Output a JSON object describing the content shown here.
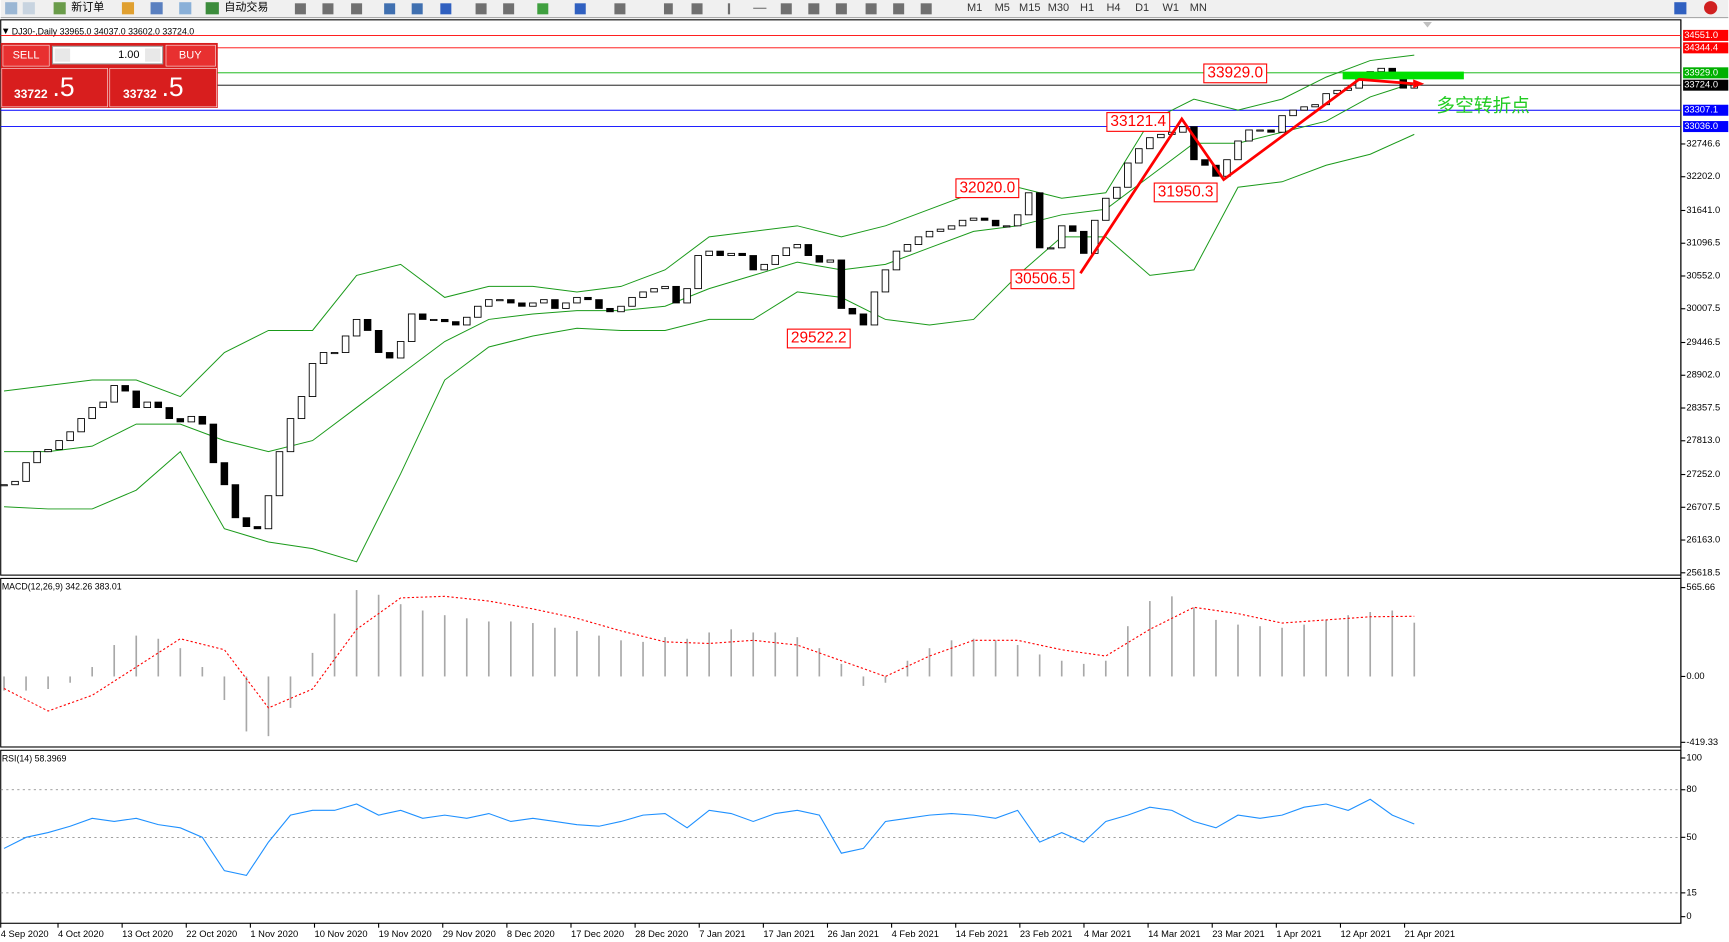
{
  "toolbar": {
    "new_order": "新订单",
    "auto_trading": "自动交易",
    "timeframes": [
      "M1",
      "M5",
      "M15",
      "M30",
      "H1",
      "H4",
      "D1",
      "W1",
      "MN"
    ]
  },
  "order_panel": {
    "sell": "SELL",
    "buy": "BUY",
    "lots": "1.00",
    "sell_price": "33722",
    "sell_fraction": ".5",
    "buy_price": "33732",
    "buy_fraction": ".5"
  },
  "note": "多空转折点",
  "chart_data": [
    {
      "type": "candlestick",
      "title": "DJ30-,Daily  33965.0 34037.0 33602.0 33724.0",
      "values": [
        27083,
        27138,
        27449,
        27632,
        27669,
        27816,
        27962,
        28182,
        28365,
        28456,
        28731,
        28640,
        28365,
        28456,
        28365,
        28182,
        28127,
        28218,
        28090,
        27449,
        27083,
        26534,
        26387,
        26351,
        26900,
        27632,
        28182,
        28548,
        29097,
        29280,
        29280,
        29555,
        29830,
        29647,
        29280,
        29189,
        29463,
        29921,
        29830,
        29830,
        29793,
        29738,
        29866,
        30049,
        30159,
        30159,
        30104,
        30049,
        30104,
        30159,
        30013,
        30104,
        30196,
        30159,
        30013,
        29958,
        30049,
        30196,
        30287,
        30342,
        30379,
        30104,
        30342,
        30892,
        30965,
        30892,
        30928,
        30892,
        30654,
        30745,
        30892,
        31020,
        31075,
        30892,
        30782,
        30818,
        30013,
        29921,
        29738,
        30287,
        30654,
        30965,
        31075,
        31203,
        31294,
        31331,
        31386,
        31478,
        31514,
        31478,
        31386,
        31386,
        31569,
        31935,
        31020,
        31020,
        31386,
        31294,
        30928,
        31478,
        31844,
        32027,
        32430,
        32668,
        32851,
        32906,
        32942,
        33034,
        32485,
        32393,
        32210,
        32485,
        32796,
        32979,
        32979,
        32942,
        33217,
        33309,
        33364,
        33400,
        33583,
        33638,
        33675,
        33858,
        33949,
        34004,
        33894,
        33675,
        33724
      ],
      "upper_band": [
        28640,
        28731,
        28823,
        28823,
        28548,
        29280,
        29647,
        29647,
        30562,
        30745,
        30196,
        30379,
        30379,
        30287,
        30379,
        30654,
        31203,
        31294,
        31386,
        31203,
        31386,
        31661,
        31935,
        32027,
        31844,
        31935,
        33125,
        33492,
        33309,
        33492,
        33858,
        34133,
        34224
      ],
      "middle_band": [
        27632,
        27632,
        27724,
        28090,
        28090,
        27816,
        27632,
        27816,
        28365,
        28914,
        29463,
        29830,
        29921,
        29976,
        29976,
        30049,
        30342,
        30562,
        30782,
        30654,
        30745,
        31020,
        31294,
        31386,
        31569,
        31661,
        32210,
        32759,
        32759,
        32942,
        33125,
        33528,
        33766
      ],
      "lower_band": [
        26717,
        26680,
        26680,
        26992,
        27632,
        26351,
        26131,
        26020,
        25801,
        27266,
        28823,
        29372,
        29555,
        29683,
        29647,
        29647,
        29830,
        29830,
        30287,
        30196,
        29830,
        29738,
        29830,
        30562,
        31203,
        31203,
        30562,
        30654,
        32027,
        32118,
        32393,
        32576,
        32906
      ],
      "band_color": "#1a9a1a",
      "ylim": [
        25580,
        34810
      ],
      "yticks": [
        {
          "value": 32746.6,
          "label": "32746.6"
        },
        {
          "value": 32202,
          "label": "32202.0"
        },
        {
          "value": 31641,
          "label": "31641.0"
        },
        {
          "value": 31096.5,
          "label": "31096.5"
        },
        {
          "value": 30552,
          "label": "30552.0"
        },
        {
          "value": 30007.5,
          "label": "30007.5"
        },
        {
          "value": 29446.5,
          "label": "29446.5"
        },
        {
          "value": 28902,
          "label": "28902.0"
        },
        {
          "value": 28357.5,
          "label": "28357.5"
        },
        {
          "value": 27813,
          "label": "27813.0"
        },
        {
          "value": 27252,
          "label": "27252.0"
        },
        {
          "value": 26707.5,
          "label": "26707.5"
        },
        {
          "value": 26163,
          "label": "26163.0"
        },
        {
          "value": 25618.5,
          "label": "25618.5"
        }
      ],
      "levels": [
        {
          "value": 34551,
          "label": "34551.0",
          "color": "#ff0000"
        },
        {
          "value": 34344.4,
          "label": "34344.4",
          "color": "#ff0000"
        },
        {
          "value": 33929,
          "label": "33929.0",
          "color": "#00b000"
        },
        {
          "value": 33724,
          "label": "33724.0",
          "color": "#000000"
        },
        {
          "value": 33307.1,
          "label": "33307.1",
          "color": "#0000ff"
        },
        {
          "value": 33036,
          "label": "33036.0",
          "color": "#0000ff"
        }
      ],
      "annotations": [
        {
          "value": 33929,
          "label": "33929.0"
        },
        {
          "value": 33121.4,
          "label": "33121.4"
        },
        {
          "value": 32020,
          "label": "32020.0"
        },
        {
          "value": 31950.3,
          "label": "31950.3"
        },
        {
          "value": 30506.5,
          "label": "30506.5"
        },
        {
          "value": 29522.2,
          "label": "29522.2"
        }
      ],
      "x_labels": [
        "4 Sep 2020",
        "4 Oct 2020",
        "13 Oct 2020",
        "22 Oct 2020",
        "1 Nov 2020",
        "10 Nov 2020",
        "19 Nov 2020",
        "29 Nov 2020",
        "8 Dec 2020",
        "17 Dec 2020",
        "28 Dec 2020",
        "7 Jan 2021",
        "17 Jan 2021",
        "26 Jan 2021",
        "4 Feb 2021",
        "14 Feb 2021",
        "23 Feb 2021",
        "4 Mar 2021",
        "14 Mar 2021",
        "23 Mar 2021",
        "1 Apr 2021",
        "12 Apr 2021",
        "21 Apr 2021"
      ]
    },
    {
      "type": "macd",
      "title": "MACD(12,26,9) 342.26 383.01",
      "values": [
        -90,
        -90,
        -80,
        -40,
        60,
        200,
        260,
        240,
        180,
        60,
        -150,
        -350,
        -380,
        -200,
        150,
        400,
        550,
        520,
        460,
        420,
        390,
        370,
        350,
        350,
        340,
        310,
        290,
        260,
        230,
        220,
        250,
        240,
        280,
        300,
        280,
        280,
        250,
        180,
        80,
        -60,
        -40,
        100,
        180,
        230,
        240,
        230,
        200,
        140,
        100,
        80,
        100,
        320,
        480,
        510,
        440,
        360,
        330,
        320,
        310,
        330,
        360,
        390,
        410,
        420,
        342.26
      ],
      "signal": [
        -77,
        -220,
        -120,
        60,
        240,
        170,
        -200,
        -80,
        300,
        500,
        510,
        480,
        430,
        370,
        290,
        220,
        210,
        230,
        200,
        100,
        0,
        130,
        230,
        230,
        170,
        130,
        300,
        440,
        400,
        340,
        360,
        380,
        383.01
      ],
      "hist_color": "#a8a8a8",
      "signal_color": "#ff0000",
      "ylim": [
        -442,
        610
      ],
      "yticks": [
        {
          "value": 565.66,
          "label": "565.66"
        },
        {
          "value": 0,
          "label": "0.00"
        },
        {
          "value": -419.33,
          "label": "-419.33"
        }
      ]
    },
    {
      "type": "line",
      "title": "RSI(14) 58.3969",
      "values": [
        43,
        50,
        53,
        57,
        62,
        60,
        62,
        58,
        56,
        50,
        29,
        26,
        47,
        64,
        67,
        67,
        71,
        64,
        67,
        62,
        64,
        62,
        65,
        60,
        62,
        60,
        58,
        57,
        60,
        64,
        65,
        56,
        67,
        65,
        60,
        65,
        67,
        64,
        40,
        43,
        60,
        62,
        64,
        65,
        64,
        62,
        67,
        47,
        53,
        47,
        60,
        64,
        69,
        67,
        60,
        56,
        64,
        62,
        64,
        69,
        71,
        67,
        74,
        64,
        58.3969
      ],
      "color": "#1e90ff",
      "ylim": [
        0,
        100
      ],
      "yticks": [
        100,
        80,
        50,
        15,
        0
      ],
      "grid": "dashed"
    }
  ]
}
